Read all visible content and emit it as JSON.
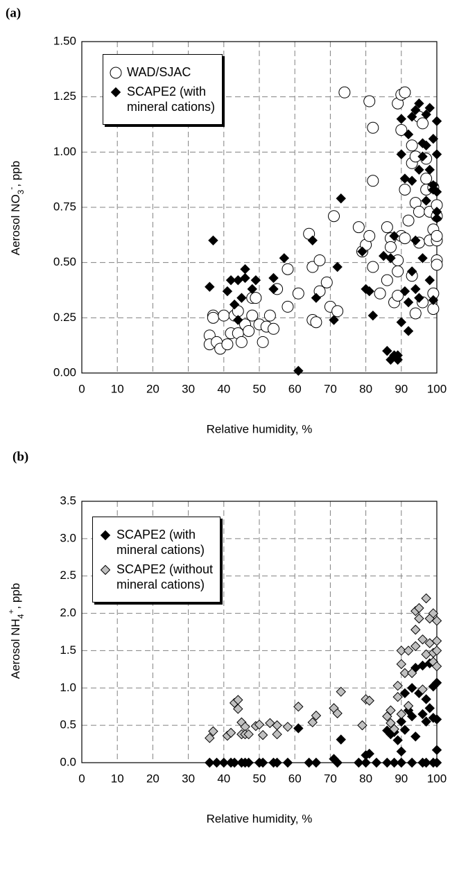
{
  "chart_data": [
    {
      "type": "scatter",
      "panel_label": "(a)",
      "xlabel": "Relative humidity,  %",
      "ylabel": [
        "Aerosol NO",
        "3",
        "-",
        ",  ppb"
      ],
      "xlim": [
        0,
        100
      ],
      "xticks": [
        0,
        10,
        20,
        30,
        40,
        50,
        60,
        70,
        80,
        90,
        100
      ],
      "ylim": [
        0,
        1.5
      ],
      "yticks": [
        {
          "value": 0,
          "label": "0.00"
        },
        {
          "value": 0.25,
          "label": "0.25"
        },
        {
          "value": 0.5,
          "label": "0.50"
        },
        {
          "value": 0.75,
          "label": "0.75"
        },
        {
          "value": 1,
          "label": "1.00"
        },
        {
          "value": 1.25,
          "label": "1.25"
        },
        {
          "value": 1.5,
          "label": "1.50"
        }
      ],
      "grid": true,
      "legend": "upper left",
      "series": [
        {
          "name": "WAD/SJAC",
          "marker": "circle",
          "color": "#ffffff",
          "edgecolor": "#000000",
          "x": [
            36,
            36,
            37,
            37,
            38,
            39,
            40,
            41,
            42,
            43,
            44,
            44,
            45,
            46,
            47,
            48,
            48,
            49,
            50,
            51,
            52,
            53,
            54,
            55,
            58,
            58,
            61,
            64,
            65,
            65,
            66,
            67,
            67,
            69,
            70,
            71,
            72,
            74,
            78,
            79,
            80,
            81,
            81,
            82,
            82,
            82,
            84,
            86,
            86,
            87,
            87,
            88,
            89,
            89,
            89,
            89,
            90,
            90,
            90,
            91,
            91,
            91,
            92,
            93,
            93,
            93,
            94,
            94,
            94,
            95,
            95,
            95,
            96,
            96,
            97,
            97,
            97,
            98,
            98,
            99,
            99,
            99,
            99,
            100,
            100,
            100,
            100,
            100,
            100
          ],
          "values": [
            0.17,
            0.13,
            0.26,
            0.25,
            0.14,
            0.11,
            0.26,
            0.13,
            0.18,
            0.26,
            0.28,
            0.18,
            0.14,
            0.22,
            0.19,
            0.34,
            0.26,
            0.34,
            0.22,
            0.14,
            0.21,
            0.26,
            0.2,
            0.38,
            0.3,
            0.47,
            0.36,
            0.63,
            0.48,
            0.24,
            0.23,
            0.37,
            0.51,
            0.41,
            0.3,
            0.71,
            0.28,
            1.27,
            0.66,
            0.55,
            0.58,
            0.62,
            1.23,
            0.87,
            0.48,
            1.11,
            0.36,
            0.66,
            0.42,
            0.61,
            0.57,
            0.32,
            0.51,
            0.46,
            0.35,
            1.22,
            0.62,
            1.1,
            1.26,
            1.27,
            0.83,
            0.61,
            0.69,
            0.95,
            1.03,
            0.44,
            0.98,
            0.77,
            0.27,
            1.16,
            0.73,
            0.59,
            0.32,
            1.13,
            0.83,
            0.88,
            0.97,
            0.6,
            0.73,
            0.36,
            0.29,
            0.84,
            0.65,
            0.6,
            0.51,
            0.49,
            0.62,
            0.71,
            0.76
          ]
        },
        {
          "name": "SCAPE2 (with\nmineral cations)",
          "marker": "diamond",
          "color": "#000000",
          "edgecolor": "#000000",
          "x": [
            36,
            37,
            41,
            42,
            43,
            44,
            44,
            45,
            46,
            46,
            48,
            49,
            54,
            54,
            57,
            61,
            65,
            66,
            71,
            72,
            73,
            79,
            80,
            81,
            82,
            85,
            86,
            87,
            87,
            88,
            88,
            89,
            89,
            90,
            90,
            90,
            91,
            91,
            92,
            92,
            92,
            93,
            93,
            93,
            94,
            94,
            94,
            95,
            95,
            95,
            96,
            96,
            96,
            97,
            97,
            97,
            98,
            98,
            98,
            99,
            99,
            99,
            99,
            100,
            100,
            100,
            100,
            100
          ],
          "values": [
            0.39,
            0.6,
            0.37,
            0.42,
            0.31,
            0.42,
            0.24,
            0.34,
            0.43,
            0.47,
            0.38,
            0.42,
            0.43,
            0.38,
            0.52,
            0.01,
            0.6,
            0.34,
            0.24,
            0.48,
            0.79,
            0.55,
            0.38,
            0.37,
            0.26,
            0.53,
            0.1,
            0.06,
            0.52,
            0.08,
            0.62,
            0.06,
            0.08,
            0.99,
            0.23,
            1.15,
            0.88,
            0.37,
            0.19,
            0.32,
            1.08,
            1.16,
            0.87,
            0.46,
            1.19,
            0.38,
            0.6,
            1.22,
            0.92,
            0.34,
            1.04,
            0.98,
            0.52,
            1.17,
            0.78,
            1.03,
            0.92,
            0.42,
            1.2,
            1.06,
            0.83,
            0.85,
            0.33,
            0.99,
            0.73,
            0.7,
            0.82,
            1.14
          ]
        }
      ]
    },
    {
      "type": "scatter",
      "panel_label": "(b)",
      "xlabel": "Relative humidity,  %",
      "ylabel": [
        "Aerosol NH",
        "4",
        "+",
        ",  ppb"
      ],
      "xlim": [
        0,
        100
      ],
      "xticks": [
        0,
        10,
        20,
        30,
        40,
        50,
        60,
        70,
        80,
        90,
        100
      ],
      "ylim": [
        0,
        3.5
      ],
      "yticks": [
        {
          "value": 0,
          "label": "0.0"
        },
        {
          "value": 0.5,
          "label": "0.5"
        },
        {
          "value": 1,
          "label": "1.0"
        },
        {
          "value": 1.5,
          "label": "1.5"
        },
        {
          "value": 2,
          "label": "2.0"
        },
        {
          "value": 2.5,
          "label": "2.5"
        },
        {
          "value": 3,
          "label": "3.0"
        },
        {
          "value": 3.5,
          "label": "3.5"
        }
      ],
      "grid": true,
      "legend": "upper left",
      "series": [
        {
          "name": "SCAPE2 (with\nmineral cations)",
          "marker": "diamond",
          "color": "#000000",
          "edgecolor": "#000000",
          "x": [
            36,
            38,
            40,
            42,
            43,
            45,
            46,
            47,
            50,
            51,
            54,
            55,
            58,
            64,
            66,
            72,
            78,
            80,
            83,
            86,
            88,
            90,
            93,
            96,
            97,
            99,
            100,
            61,
            71,
            73,
            80,
            81,
            86,
            87,
            88,
            89,
            90,
            90,
            91,
            91,
            92,
            93,
            93,
            94,
            94,
            95,
            96,
            96,
            97,
            97,
            98,
            98,
            99,
            99,
            100,
            100,
            100
          ],
          "values": [
            0,
            0,
            0,
            0,
            0,
            0,
            0,
            0,
            0,
            0,
            0,
            0,
            0,
            0,
            0,
            0,
            0,
            0,
            0,
            0,
            0,
            0,
            0,
            0,
            0,
            0,
            0,
            0.46,
            0.05,
            0.31,
            0.1,
            0.12,
            0.43,
            0.38,
            0.41,
            0.3,
            0.55,
            0.15,
            0.93,
            0.44,
            0.7,
            1.0,
            0.62,
            1.27,
            0.35,
            0.93,
            1.3,
            0.65,
            0.85,
            0.55,
            0.73,
            1.33,
            0.6,
            1.02,
            1.07,
            0.17,
            0.58
          ]
        },
        {
          "name": "SCAPE2 (without\nmineral cations)",
          "marker": "diamond",
          "color": "#c0c0c0",
          "edgecolor": "#000000",
          "x": [
            36,
            37,
            41,
            42,
            43,
            44,
            44,
            45,
            45,
            46,
            46,
            47,
            49,
            50,
            51,
            53,
            55,
            55,
            58,
            61,
            65,
            66,
            71,
            72,
            73,
            79,
            80,
            81,
            86,
            87,
            87,
            88,
            89,
            89,
            90,
            90,
            90,
            91,
            92,
            92,
            93,
            94,
            94,
            94,
            95,
            95,
            96,
            96,
            97,
            97,
            98,
            98,
            99,
            99,
            99,
            100,
            100,
            100,
            100
          ],
          "values": [
            0.33,
            0.42,
            0.36,
            0.4,
            0.8,
            0.84,
            0.72,
            0.38,
            0.54,
            0.48,
            0.38,
            0.38,
            0.49,
            0.51,
            0.37,
            0.53,
            0.5,
            0.38,
            0.48,
            0.75,
            0.54,
            0.63,
            0.73,
            0.66,
            0.95,
            0.5,
            0.85,
            0.83,
            0.62,
            0.7,
            0.53,
            0.45,
            1.03,
            0.88,
            1.32,
            1.5,
            0.65,
            1.2,
            1.5,
            0.76,
            1.2,
            2.03,
            1.56,
            1.78,
            2.07,
            1.93,
            1.65,
            0.98,
            2.2,
            1.45,
            1.93,
            1.6,
            1.47,
            2.0,
            1.35,
            1.63,
            1.9,
            1.5,
            1.29
          ]
        }
      ]
    }
  ]
}
